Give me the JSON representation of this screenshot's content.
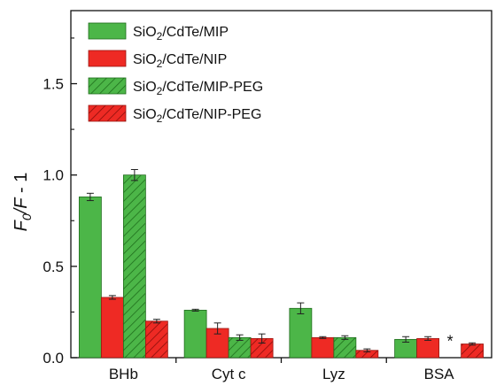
{
  "chart_data": {
    "type": "bar",
    "categories": [
      "BHb",
      "Cyt c",
      "Lyz",
      "BSA"
    ],
    "ylabel": "F0/F - 1",
    "ylim": [
      0,
      1.9
    ],
    "yticks": [
      "0.0",
      "0.5",
      "1.0",
      "1.5"
    ],
    "legend_position": "top-left",
    "grid": false,
    "series": [
      {
        "name": "SiO2/CdTe/MIP",
        "color": "#4cb648",
        "pattern": "solid",
        "values": [
          0.88,
          0.26,
          0.27,
          0.1
        ],
        "errors": [
          0.02,
          0.005,
          0.03,
          0.015
        ]
      },
      {
        "name": "SiO2/CdTe/NIP",
        "color": "#ee2a24",
        "pattern": "solid",
        "values": [
          0.33,
          0.16,
          0.11,
          0.105
        ],
        "errors": [
          0.01,
          0.03,
          0.005,
          0.01
        ]
      },
      {
        "name": "SiO2/CdTe/MIP-PEG",
        "color": "#4cb648",
        "pattern": "hatched",
        "values": [
          1.0,
          0.11,
          0.11,
          null
        ],
        "errors": [
          0.03,
          0.015,
          0.01,
          null
        ]
      },
      {
        "name": "SiO2/CdTe/NIP-PEG",
        "color": "#ee2a24",
        "pattern": "hatched",
        "values": [
          0.2,
          0.105,
          0.04,
          0.075
        ],
        "errors": [
          0.01,
          0.025,
          0.008,
          0.006
        ]
      }
    ],
    "annotation": "*"
  }
}
